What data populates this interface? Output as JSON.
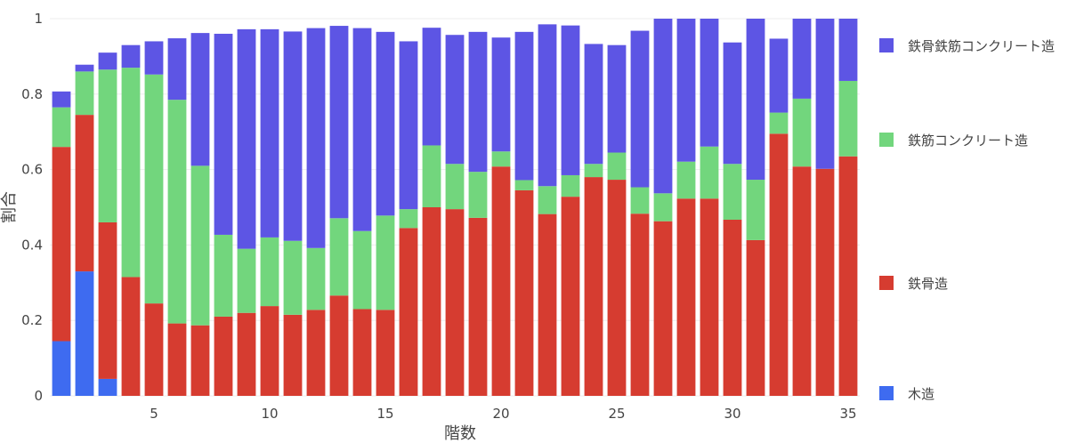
{
  "chart_data": {
    "type": "bar",
    "stacked": true,
    "xlabel": "階数",
    "ylabel": "割合",
    "ylim": [
      0,
      1
    ],
    "xlim": [
      0.5,
      35.5
    ],
    "yticks": [
      0,
      0.2,
      0.4,
      0.6,
      0.8,
      1
    ],
    "ytick_labels": [
      "0",
      "0.2",
      "0.4",
      "0.6",
      "0.8",
      "1"
    ],
    "xticks": [
      5,
      10,
      15,
      20,
      25,
      30,
      35
    ],
    "xtick_labels": [
      "5",
      "10",
      "15",
      "20",
      "25",
      "30",
      "35"
    ],
    "grid": true,
    "legend_position": "right",
    "x": [
      1,
      2,
      3,
      4,
      5,
      6,
      7,
      8,
      9,
      10,
      11,
      12,
      13,
      14,
      15,
      16,
      17,
      18,
      19,
      20,
      21,
      22,
      23,
      24,
      25,
      26,
      27,
      28,
      29,
      30,
      31,
      32,
      33,
      34,
      35
    ],
    "series": [
      {
        "name": "木造",
        "color": "#3e6bf0",
        "values": [
          0.145,
          0.33,
          0.045,
          0,
          0,
          0,
          0,
          0,
          0,
          0,
          0,
          0,
          0,
          0,
          0,
          0,
          0,
          0,
          0,
          0,
          0,
          0,
          0,
          0,
          0,
          0,
          0,
          0,
          0,
          0,
          0,
          0,
          0,
          0,
          0
        ]
      },
      {
        "name": "鉄骨造",
        "color": "#d63c30",
        "values": [
          0.515,
          0.415,
          0.415,
          0.315,
          0.245,
          0.192,
          0.187,
          0.21,
          0.22,
          0.238,
          0.215,
          0.228,
          0.266,
          0.23,
          0.228,
          0.445,
          0.5,
          0.495,
          0.472,
          0.608,
          0.545,
          0.482,
          0.528,
          0.58,
          0.573,
          0.483,
          0.463,
          0.523,
          0.523,
          0.467,
          0.413,
          0.695,
          0.608,
          0.602,
          0.635
        ]
      },
      {
        "name": "鉄筋コンクリート造",
        "color": "#72d67d",
        "values": [
          0.105,
          0.115,
          0.405,
          0.555,
          0.607,
          0.593,
          0.423,
          0.217,
          0.17,
          0.182,
          0.196,
          0.164,
          0.205,
          0.207,
          0.25,
          0.05,
          0.164,
          0.12,
          0.122,
          0.04,
          0.027,
          0.074,
          0.057,
          0.035,
          0.072,
          0.07,
          0.074,
          0.098,
          0.138,
          0.148,
          0.16,
          0.056,
          0.18,
          0,
          0.2
        ]
      },
      {
        "name": "鉄骨鉄筋コンクリート造",
        "color": "#5d55e4",
        "values": [
          0.042,
          0.018,
          0.045,
          0.06,
          0.088,
          0.163,
          0.352,
          0.533,
          0.582,
          0.552,
          0.555,
          0.583,
          0.51,
          0.538,
          0.487,
          0.445,
          0.312,
          0.342,
          0.371,
          0.302,
          0.393,
          0.429,
          0.397,
          0.318,
          0.285,
          0.415,
          0.463,
          0.379,
          0.339,
          0.322,
          0.427,
          0.196,
          0.212,
          0.398,
          0.165
        ]
      }
    ],
    "legend_order": [
      "鉄骨鉄筋コンクリート造",
      "鉄筋コンクリート造",
      "鉄骨造",
      "木造"
    ]
  }
}
